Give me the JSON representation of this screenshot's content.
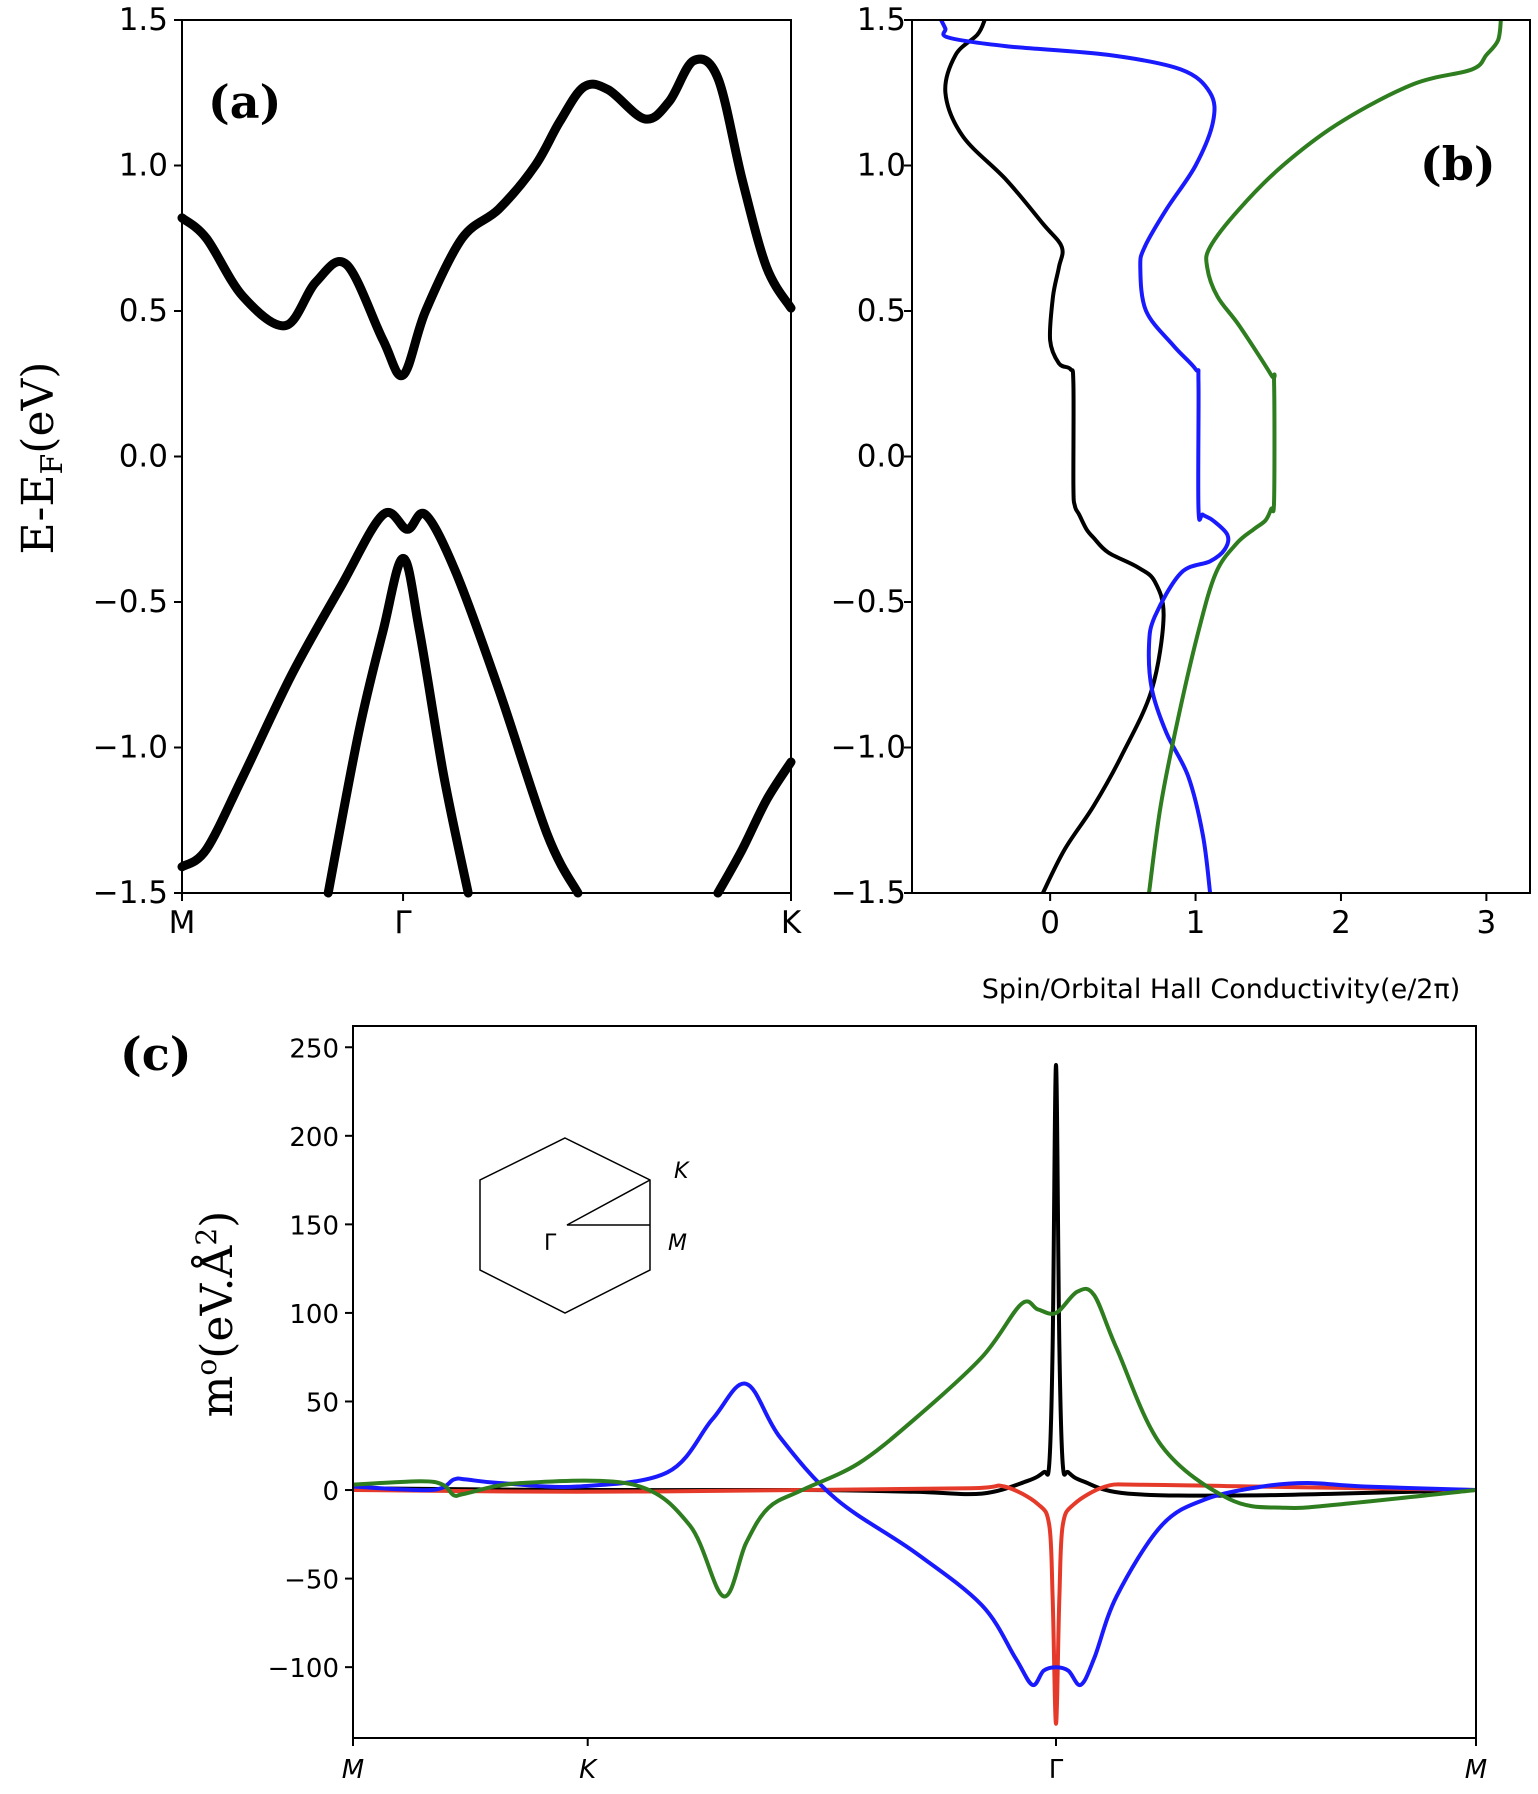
{
  "chart_data": [
    {
      "panel": "a",
      "type": "line",
      "panel_label": "(a)",
      "ylabel_main": "E-E",
      "ylabel_sub": "F",
      "ylabel_unit": "(eV)",
      "ylim": [
        -1.5,
        1.5
      ],
      "yticks": [
        1.5,
        1.0,
        0.5,
        0.0,
        -0.5,
        -1.0,
        -1.5
      ],
      "ytick_labels": [
        "1.5",
        "1.0",
        "0.5",
        "0.0",
        "−0.5",
        "−1.0",
        "−1.5"
      ],
      "xlim": [
        0,
        1
      ],
      "xticks": [
        0,
        0.363,
        1
      ],
      "xtick_labels": [
        "M",
        "Γ",
        "K"
      ],
      "series": [
        {
          "name": "conduction band",
          "color": "#000000",
          "x": [
            0,
            0.04,
            0.1,
            0.17,
            0.22,
            0.27,
            0.33,
            0.363,
            0.4,
            0.46,
            0.52,
            0.58,
            0.62,
            0.66,
            0.7,
            0.76,
            0.8,
            0.84,
            0.88,
            0.92,
            0.96,
            1.0
          ],
          "y": [
            0.82,
            0.75,
            0.55,
            0.45,
            0.6,
            0.66,
            0.4,
            0.28,
            0.5,
            0.75,
            0.85,
            1.0,
            1.15,
            1.27,
            1.26,
            1.16,
            1.22,
            1.36,
            1.3,
            0.95,
            0.65,
            0.51
          ]
        },
        {
          "name": "valence band 1",
          "color": "#000000",
          "x": [
            0,
            0.04,
            0.1,
            0.18,
            0.26,
            0.33,
            0.37,
            0.4,
            0.45,
            0.52,
            0.6,
            0.65
          ],
          "y": [
            -1.41,
            -1.35,
            -1.1,
            -0.75,
            -0.45,
            -0.2,
            -0.25,
            -0.2,
            -0.4,
            -0.8,
            -1.3,
            -1.5
          ]
        },
        {
          "name": "valence band 2",
          "color": "#000000",
          "x": [
            0.24,
            0.29,
            0.33,
            0.363,
            0.39,
            0.43,
            0.47
          ],
          "y": [
            -1.5,
            -0.95,
            -0.6,
            -0.35,
            -0.6,
            -1.1,
            -1.5
          ]
        },
        {
          "name": "band near K",
          "color": "#000000",
          "x": [
            0.88,
            0.92,
            0.96,
            1.0
          ],
          "y": [
            -1.5,
            -1.35,
            -1.18,
            -1.05
          ]
        }
      ]
    },
    {
      "panel": "b",
      "type": "line",
      "panel_label": "(b)",
      "xlabel": "Spin/Orbital Hall Conductivity(e/2π)",
      "xlim": [
        -0.95,
        3.3
      ],
      "xticks": [
        0,
        1,
        2,
        3
      ],
      "xtick_labels": [
        "0",
        "1",
        "2",
        "3"
      ],
      "ylim": [
        -1.5,
        1.5
      ],
      "yticks": [
        1.5,
        1.0,
        0.5,
        0.0,
        -0.5,
        -1.0,
        -1.5
      ],
      "ytick_labels": [
        "1.5",
        "1.0",
        "0.5",
        "0.0",
        "−0.5",
        "−1.0",
        "−1.5"
      ],
      "series": [
        {
          "name": "black",
          "color": "#000000",
          "x": [
            -0.05,
            0.1,
            0.3,
            0.5,
            0.7,
            0.78,
            0.72,
            0.6,
            0.4,
            0.3,
            0.25,
            0.2,
            0.17,
            0.16,
            0.16,
            0.14,
            0.06,
            0.0,
            0.02,
            0.06,
            0.08,
            -0.05,
            -0.3,
            -0.6,
            -0.72,
            -0.65,
            -0.5,
            -0.45
          ],
          "y": [
            -1.5,
            -1.35,
            -1.2,
            -1.02,
            -0.8,
            -0.55,
            -0.43,
            -0.38,
            -0.33,
            -0.28,
            -0.25,
            -0.2,
            -0.17,
            -0.1,
            0.25,
            0.3,
            0.32,
            0.4,
            0.55,
            0.65,
            0.72,
            0.8,
            0.95,
            1.1,
            1.25,
            1.38,
            1.45,
            1.5
          ]
        },
        {
          "name": "blue",
          "color": "#1a1aff",
          "x": [
            1.1,
            1.05,
            0.95,
            0.8,
            0.7,
            0.68,
            0.72,
            0.9,
            1.1,
            1.2,
            1.22,
            1.12,
            1.05,
            1.02,
            1.02,
            1.0,
            0.85,
            0.66,
            0.62,
            0.65,
            0.8,
            1.0,
            1.12,
            1.1,
            0.9,
            0.4,
            -0.3,
            -0.7,
            -0.72,
            -0.75
          ],
          "y": [
            -1.5,
            -1.3,
            -1.1,
            -0.95,
            -0.8,
            -0.65,
            -0.55,
            -0.4,
            -0.36,
            -0.32,
            -0.27,
            -0.22,
            -0.2,
            -0.18,
            0.25,
            0.3,
            0.38,
            0.5,
            0.65,
            0.72,
            0.85,
            1.0,
            1.15,
            1.25,
            1.33,
            1.38,
            1.41,
            1.44,
            1.47,
            1.5
          ]
        },
        {
          "name": "green",
          "color": "#2e7d1f",
          "x": [
            0.68,
            0.76,
            0.88,
            1.02,
            1.14,
            1.28,
            1.4,
            1.48,
            1.52,
            1.54,
            1.54,
            1.52,
            1.3,
            1.15,
            1.08,
            1.1,
            1.3,
            1.6,
            2.0,
            2.5,
            2.9,
            3.0,
            3.08,
            3.1
          ],
          "y": [
            -1.5,
            -1.2,
            -0.9,
            -0.6,
            -0.4,
            -0.3,
            -0.25,
            -0.22,
            -0.18,
            -0.15,
            0.25,
            0.28,
            0.45,
            0.55,
            0.65,
            0.72,
            0.85,
            1.0,
            1.15,
            1.28,
            1.33,
            1.38,
            1.43,
            1.5
          ]
        }
      ]
    },
    {
      "panel": "c",
      "type": "line",
      "panel_label": "(c)",
      "ylabel_main": "m",
      "ylabel_sup": "o",
      "ylabel_unit": "(eV.Å",
      "ylabel_sup2": "2",
      "ylabel_close": ")",
      "ylim": [
        -140,
        262
      ],
      "yticks": [
        250,
        200,
        150,
        100,
        50,
        0,
        -50,
        -100
      ],
      "ytick_labels": [
        "250",
        "200",
        "150",
        "100",
        "50",
        "0",
        "−50",
        "−100"
      ],
      "xlim": [
        0,
        1
      ],
      "xticks": [
        0,
        0.209,
        0.626,
        1
      ],
      "xtick_labels": [
        "M",
        "K",
        "Γ",
        "M"
      ],
      "inset_labels": {
        "K": "K",
        "Gamma": "Γ",
        "M": "M"
      },
      "series": [
        {
          "name": "black",
          "color": "#000000",
          "x": [
            0,
            0.2,
            0.4,
            0.5,
            0.56,
            0.6,
            0.615,
            0.62,
            0.623,
            0.626,
            0.629,
            0.632,
            0.637,
            0.65,
            0.69,
            0.8,
            1.0
          ],
          "y": [
            1,
            0,
            0,
            -1,
            -2,
            5,
            10,
            15,
            80,
            240,
            80,
            15,
            10,
            5,
            -2,
            -3,
            0
          ]
        },
        {
          "name": "red",
          "color": "#e53a2a",
          "x": [
            0,
            0.2,
            0.4,
            0.55,
            0.58,
            0.61,
            0.62,
            0.623,
            0.626,
            0.629,
            0.632,
            0.642,
            0.67,
            0.7,
            0.8,
            1.0
          ],
          "y": [
            0,
            -1,
            0,
            1,
            2,
            -8,
            -20,
            -60,
            -132,
            -60,
            -20,
            -8,
            2,
            3,
            2,
            0
          ]
        },
        {
          "name": "blue",
          "color": "#1a1aff",
          "x": [
            0,
            0.07,
            0.09,
            0.1,
            0.13,
            0.2,
            0.28,
            0.32,
            0.35,
            0.38,
            0.43,
            0.5,
            0.56,
            0.59,
            0.605,
            0.615,
            0.626,
            0.637,
            0.648,
            0.66,
            0.68,
            0.72,
            0.76,
            0.81,
            0.85,
            0.9,
            1.0
          ],
          "y": [
            2,
            0,
            6,
            6,
            4,
            2,
            10,
            40,
            60,
            30,
            -5,
            -35,
            -65,
            -95,
            -110,
            -102,
            -100,
            -102,
            -110,
            -95,
            -60,
            -20,
            -5,
            2,
            4,
            2,
            0
          ]
        },
        {
          "name": "green",
          "color": "#2e7d1f",
          "x": [
            0,
            0.06,
            0.08,
            0.09,
            0.1,
            0.15,
            0.25,
            0.3,
            0.33,
            0.35,
            0.37,
            0.4,
            0.45,
            0.5,
            0.56,
            0.595,
            0.61,
            0.626,
            0.645,
            0.66,
            0.68,
            0.72,
            0.78,
            0.83,
            0.88,
            1.0
          ],
          "y": [
            3,
            5,
            3,
            -3,
            -2,
            4,
            3,
            -20,
            -60,
            -30,
            -10,
            0,
            15,
            40,
            75,
            105,
            102,
            100,
            112,
            110,
            80,
            25,
            -5,
            -10,
            -8,
            0
          ]
        }
      ]
    }
  ]
}
